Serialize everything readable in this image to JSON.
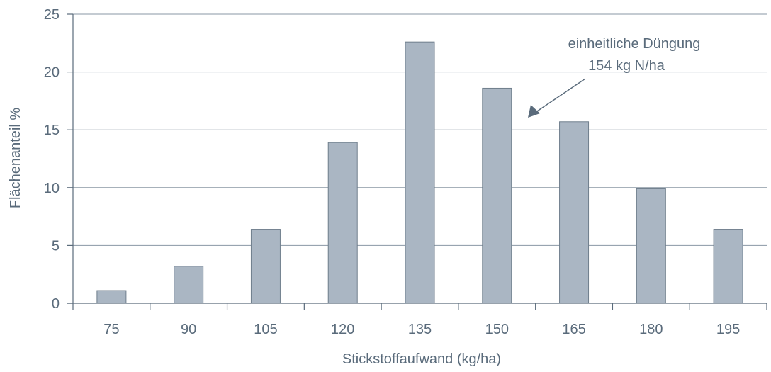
{
  "chart_data": {
    "type": "bar",
    "categories": [
      "75",
      "90",
      "105",
      "120",
      "135",
      "150",
      "165",
      "180",
      "195"
    ],
    "values": [
      1.1,
      3.2,
      6.4,
      13.9,
      22.6,
      18.6,
      15.7,
      9.9,
      6.4
    ],
    "xlabel": "Stickstoffaufwand (kg/ha)",
    "ylabel": "Flächenanteil %",
    "ylim": [
      0,
      25
    ],
    "yticks": [
      "0",
      "5",
      "10",
      "15",
      "20",
      "25"
    ],
    "grid": true,
    "annotation": {
      "line1": "einheitliche Düngung",
      "line2": "154 kg N/ha",
      "points_to": 154
    },
    "colors": {
      "bar_fill": "#aab6c3",
      "bar_stroke": "#6f7e8c",
      "grid": "#8a97a4",
      "axis": "#5a6b7b",
      "text": "#5a6b7b",
      "arrow": "#5a6b7b"
    }
  }
}
